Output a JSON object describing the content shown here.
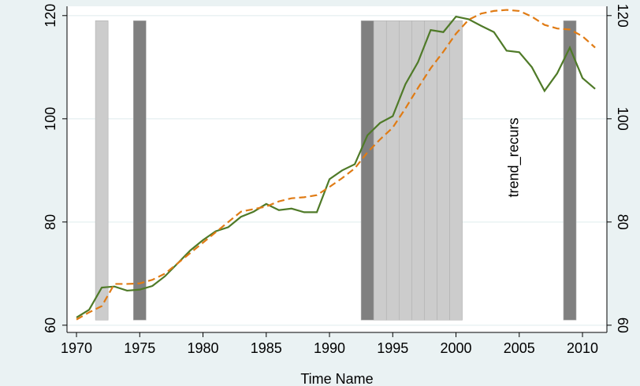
{
  "chart_data": {
    "type": "line",
    "x_label": "Time Name",
    "annotation": {
      "text": "trend_recurs",
      "x": 2005.3,
      "y": 92.5
    },
    "x": [
      1970,
      1971,
      1972,
      1973,
      1974,
      1975,
      1976,
      1977,
      1978,
      1979,
      1980,
      1981,
      1982,
      1983,
      1984,
      1985,
      1986,
      1987,
      1988,
      1989,
      1990,
      1991,
      1992,
      1993,
      1994,
      1995,
      1996,
      1997,
      1998,
      1999,
      2000,
      2001,
      2002,
      2003,
      2004,
      2005,
      2006,
      2007,
      2008,
      2009,
      2010,
      2011
    ],
    "series": [
      {
        "color": "#4f7a28",
        "dash": false,
        "values": [
          61.5,
          63,
          67.3,
          67.5,
          66.7,
          66.9,
          67.6,
          69.5,
          72,
          74.5,
          76.5,
          78.2,
          79,
          81,
          82,
          83.5,
          82.3,
          82.6,
          81.9,
          81.9,
          88.3,
          90,
          91.2,
          96.8,
          99.2,
          100.5,
          106.7,
          111,
          117.2,
          116.8,
          119.8,
          119.3,
          118,
          116.8,
          113.2,
          112.9,
          110,
          105.4,
          108.8,
          113.8,
          107.9,
          105.8
        ]
      },
      {
        "color": "#e07b14",
        "dash": true,
        "values": [
          61.1,
          62.5,
          63.7,
          68,
          68,
          68.1,
          68.8,
          70,
          72,
          74,
          76,
          78,
          80,
          82,
          82.5,
          83,
          84,
          84.6,
          84.8,
          85.2,
          86.8,
          88.5,
          90.4,
          93.5,
          96,
          98.3,
          102,
          106,
          109.8,
          113,
          116.5,
          119.2,
          120.4,
          120.9,
          121.1,
          120.9,
          119.8,
          118.2,
          117.5,
          117.3,
          116,
          113.8
        ]
      }
    ],
    "shade": {
      "x": [
        1972,
        1975,
        1993,
        1994,
        1995,
        1996,
        1997,
        1998,
        1999,
        2000,
        2009
      ],
      "values": [
        119,
        119,
        119,
        119,
        119,
        119,
        119,
        119,
        119,
        119,
        119
      ],
      "base": 61,
      "colors": [
        "#cccccc",
        "#808080",
        "#808080",
        "#cccccc",
        "#cccccc",
        "#cccccc",
        "#cccccc",
        "#cccccc",
        "#cccccc",
        "#cccccc",
        "#808080"
      ]
    },
    "xlim": [
      1969.25,
      2011.93
    ],
    "xticks": [
      1970,
      1975,
      1980,
      1985,
      1990,
      1995,
      2000,
      2005,
      2010
    ],
    "ylim": [
      58.6,
      121.8
    ],
    "yticks": [
      60,
      80,
      100,
      120
    ],
    "y2lim": [
      58.6,
      121.8
    ],
    "y2ticks": [
      60,
      80,
      100,
      120
    ],
    "grid": true
  }
}
